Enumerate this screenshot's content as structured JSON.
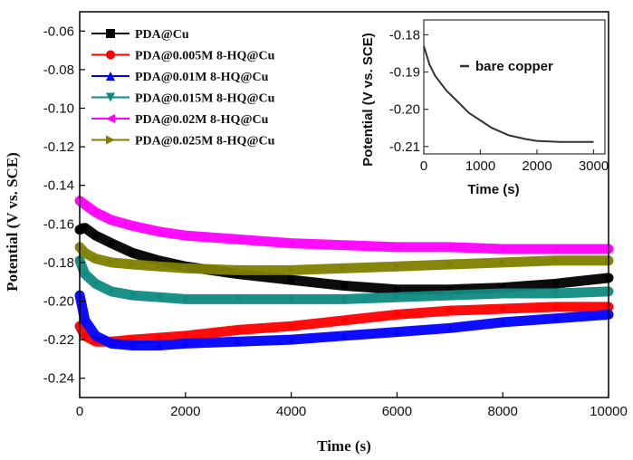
{
  "chart_data": [
    {
      "type": "line",
      "title": "",
      "xlabel": "Time (s)",
      "ylabel": "Potential (V vs. SCE)",
      "xlim": [
        0,
        10000
      ],
      "ylim": [
        -0.25,
        -0.05
      ],
      "xticks": [
        0,
        2000,
        4000,
        6000,
        8000,
        10000
      ],
      "xtick_labels": [
        "0",
        "2000",
        "4000",
        "6000",
        "8000",
        "10000"
      ],
      "yticks": [
        -0.24,
        -0.22,
        -0.2,
        -0.18,
        -0.16,
        -0.14,
        -0.12,
        -0.1,
        -0.08,
        -0.06
      ],
      "ytick_labels": [
        "-0.24",
        "-0.22",
        "-0.20",
        "-0.18",
        "-0.16",
        "-0.14",
        "-0.12",
        "-0.10",
        "-0.08",
        "-0.06"
      ],
      "legend_position": "top-left",
      "series": [
        {
          "name": "PDA@Cu",
          "color": "#000000",
          "marker": "square",
          "x": [
            0,
            100,
            300,
            600,
            1000,
            1500,
            2000,
            3000,
            4000,
            5000,
            6000,
            7000,
            8000,
            9000,
            10000
          ],
          "y": [
            -0.163,
            -0.162,
            -0.166,
            -0.17,
            -0.175,
            -0.179,
            -0.182,
            -0.186,
            -0.189,
            -0.192,
            -0.194,
            -0.194,
            -0.193,
            -0.191,
            -0.188
          ]
        },
        {
          "name": "PDA@0.005M 8-HQ@Cu",
          "color": "#ff0000",
          "marker": "circle",
          "x": [
            0,
            100,
            300,
            600,
            1000,
            1500,
            2000,
            3000,
            4000,
            5000,
            6000,
            7000,
            8000,
            9000,
            10000
          ],
          "y": [
            -0.213,
            -0.218,
            -0.221,
            -0.221,
            -0.22,
            -0.219,
            -0.218,
            -0.215,
            -0.213,
            -0.21,
            -0.207,
            -0.205,
            -0.204,
            -0.203,
            -0.203
          ]
        },
        {
          "name": "PDA@0.01M 8-HQ@Cu",
          "color": "#0000ff",
          "marker": "triangle-up",
          "x": [
            0,
            100,
            300,
            600,
            1000,
            1500,
            2000,
            3000,
            4000,
            5000,
            6000,
            7000,
            8000,
            9000,
            10000
          ],
          "y": [
            -0.197,
            -0.21,
            -0.218,
            -0.222,
            -0.223,
            -0.223,
            -0.222,
            -0.221,
            -0.22,
            -0.218,
            -0.216,
            -0.214,
            -0.211,
            -0.209,
            -0.207
          ]
        },
        {
          "name": "PDA@0.015M 8-HQ@Cu",
          "color": "#0f8a80",
          "marker": "triangle-down",
          "x": [
            0,
            100,
            300,
            600,
            1000,
            1500,
            2000,
            3000,
            4000,
            5000,
            6000,
            7000,
            8000,
            9000,
            10000
          ],
          "y": [
            -0.179,
            -0.186,
            -0.191,
            -0.195,
            -0.197,
            -0.198,
            -0.199,
            -0.199,
            -0.199,
            -0.199,
            -0.198,
            -0.197,
            -0.196,
            -0.196,
            -0.195
          ]
        },
        {
          "name": "PDA@0.02M 8-HQ@Cu",
          "color": "#ff00ff",
          "marker": "triangle-left",
          "x": [
            0,
            100,
            300,
            600,
            1000,
            1500,
            2000,
            3000,
            4000,
            5000,
            6000,
            7000,
            8000,
            9000,
            10000
          ],
          "y": [
            -0.148,
            -0.15,
            -0.154,
            -0.158,
            -0.161,
            -0.164,
            -0.166,
            -0.168,
            -0.17,
            -0.171,
            -0.172,
            -0.172,
            -0.173,
            -0.173,
            -0.173
          ]
        },
        {
          "name": "PDA@0.025M 8-HQ@Cu",
          "color": "#808000",
          "marker": "triangle-right",
          "x": [
            0,
            100,
            300,
            600,
            1000,
            1500,
            2000,
            3000,
            4000,
            5000,
            6000,
            7000,
            8000,
            9000,
            10000
          ],
          "y": [
            -0.172,
            -0.175,
            -0.178,
            -0.18,
            -0.181,
            -0.182,
            -0.183,
            -0.184,
            -0.184,
            -0.183,
            -0.182,
            -0.181,
            -0.18,
            -0.179,
            -0.179
          ]
        }
      ]
    },
    {
      "type": "line",
      "title": "",
      "xlabel": "Time (s)",
      "ylabel": "Potential (V vs. SCE)",
      "xlim": [
        0,
        3200
      ],
      "ylim": [
        -0.212,
        -0.176
      ],
      "xticks": [
        0,
        1000,
        2000,
        3000
      ],
      "xtick_labels": [
        "0",
        "1000",
        "2000",
        "3000"
      ],
      "yticks": [
        -0.21,
        -0.2,
        -0.19,
        -0.18
      ],
      "ytick_labels": [
        "-0.21",
        "-0.20",
        "-0.19",
        "-0.18"
      ],
      "legend_position": "top-right",
      "series": [
        {
          "name": "bare copper",
          "color": "#333333",
          "x": [
            0,
            100,
            200,
            400,
            600,
            800,
            1000,
            1200,
            1500,
            1800,
            2000,
            2400,
            2800,
            3000
          ],
          "y": [
            -0.183,
            -0.188,
            -0.191,
            -0.195,
            -0.198,
            -0.201,
            -0.203,
            -0.205,
            -0.207,
            -0.208,
            -0.2085,
            -0.2088,
            -0.2088,
            -0.2088
          ]
        }
      ]
    }
  ]
}
